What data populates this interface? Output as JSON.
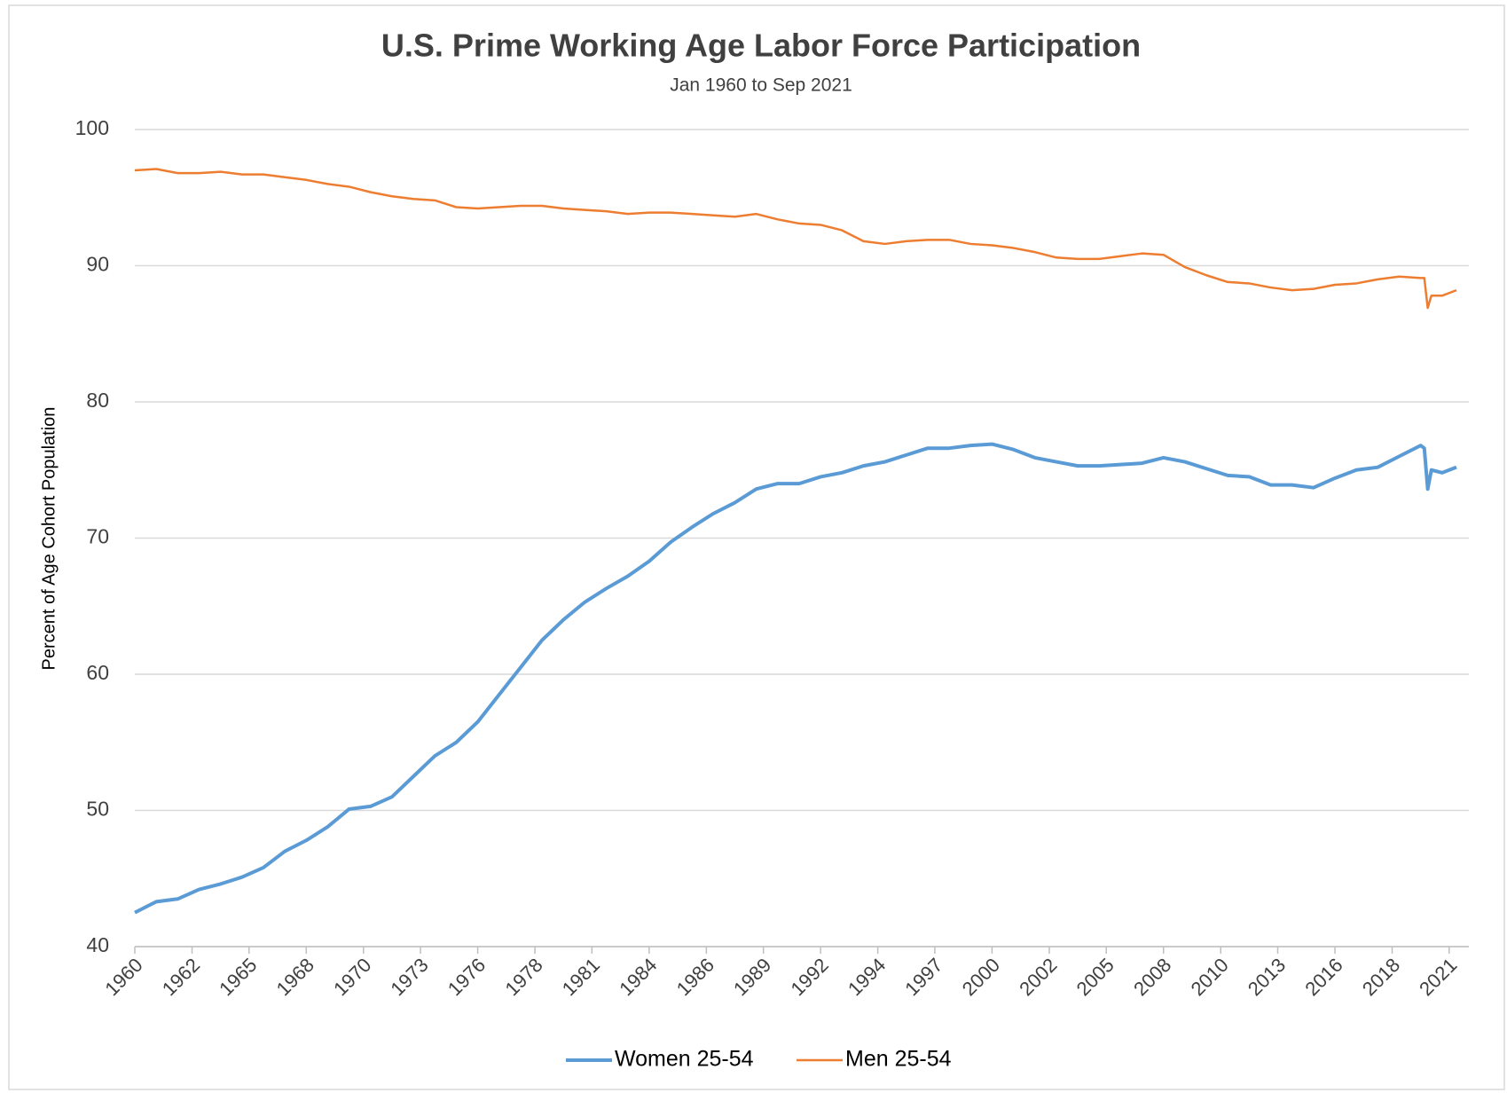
{
  "chart_data": {
    "type": "line",
    "title": "U.S. Prime Working Age Labor Force Participation",
    "subtitle": "Jan 1960 to Sep 2021",
    "y_label": "Percent of Age Cohort Population",
    "x": [
      1960,
      1961,
      1962,
      1963,
      1964,
      1965,
      1966,
      1967,
      1968,
      1969,
      1970,
      1971,
      1972,
      1973,
      1974,
      1975,
      1976,
      1977,
      1978,
      1979,
      1980,
      1981,
      1982,
      1983,
      1984,
      1985,
      1986,
      1987,
      1988,
      1989,
      1990,
      1991,
      1992,
      1993,
      1994,
      1995,
      1996,
      1997,
      1998,
      1999,
      2000,
      2001,
      2002,
      2003,
      2004,
      2005,
      2006,
      2007,
      2008,
      2009,
      2010,
      2011,
      2012,
      2013,
      2014,
      2015,
      2016,
      2017,
      2018,
      2019,
      2020,
      2020.17,
      2020.33,
      2020.5,
      2021,
      2021.67
    ],
    "series": [
      {
        "name": "Women 25-54",
        "color": "#5b9bd5",
        "values": [
          42.5,
          43.3,
          43.5,
          44.2,
          44.6,
          45.1,
          45.8,
          47.0,
          47.8,
          48.8,
          50.1,
          50.3,
          51.0,
          52.5,
          54.0,
          55.0,
          56.5,
          58.5,
          60.5,
          62.5,
          64.0,
          65.3,
          66.3,
          67.2,
          68.3,
          69.7,
          70.8,
          71.8,
          72.6,
          73.6,
          74.0,
          74.0,
          74.5,
          74.8,
          75.3,
          75.6,
          76.1,
          76.6,
          76.6,
          76.8,
          76.9,
          76.5,
          75.9,
          75.6,
          75.3,
          75.3,
          75.4,
          75.5,
          75.9,
          75.6,
          75.1,
          74.6,
          74.5,
          73.9,
          73.9,
          73.7,
          74.4,
          75.0,
          75.2,
          76.0,
          76.8,
          76.6,
          73.6,
          75.0,
          74.8,
          75.2
        ]
      },
      {
        "name": "Men 25-54",
        "color": "#ed7d31",
        "values": [
          97.0,
          97.1,
          96.8,
          96.8,
          96.9,
          96.7,
          96.7,
          96.5,
          96.3,
          96.0,
          95.8,
          95.4,
          95.1,
          94.9,
          94.8,
          94.3,
          94.2,
          94.3,
          94.4,
          94.4,
          94.2,
          94.1,
          94.0,
          93.8,
          93.9,
          93.9,
          93.8,
          93.7,
          93.6,
          93.8,
          93.4,
          93.1,
          93.0,
          92.6,
          91.8,
          91.6,
          91.8,
          91.9,
          91.9,
          91.6,
          91.5,
          91.3,
          91.0,
          90.6,
          90.5,
          90.5,
          90.7,
          90.9,
          90.8,
          89.9,
          89.3,
          88.8,
          88.7,
          88.4,
          88.2,
          88.3,
          88.6,
          88.7,
          89.0,
          89.2,
          89.1,
          89.1,
          86.9,
          87.8,
          87.8,
          88.2
        ]
      }
    ],
    "xlim": [
      1960,
      2021.67
    ],
    "xticks": [
      {
        "value": 1960,
        "label": "1960"
      },
      {
        "value": 1962.67,
        "label": "1962"
      },
      {
        "value": 1965.33,
        "label": "1965"
      },
      {
        "value": 1968,
        "label": "1968"
      },
      {
        "value": 1970.67,
        "label": "1970"
      },
      {
        "value": 1973.33,
        "label": "1973"
      },
      {
        "value": 1976,
        "label": "1976"
      },
      {
        "value": 1978.67,
        "label": "1978"
      },
      {
        "value": 1981.33,
        "label": "1981"
      },
      {
        "value": 1984,
        "label": "1984"
      },
      {
        "value": 1986.67,
        "label": "1986"
      },
      {
        "value": 1989.33,
        "label": "1989"
      },
      {
        "value": 1992,
        "label": "1992"
      },
      {
        "value": 1994.67,
        "label": "1994"
      },
      {
        "value": 1997.33,
        "label": "1997"
      },
      {
        "value": 2000,
        "label": "2000"
      },
      {
        "value": 2002.67,
        "label": "2002"
      },
      {
        "value": 2005.33,
        "label": "2005"
      },
      {
        "value": 2008,
        "label": "2008"
      },
      {
        "value": 2010.67,
        "label": "2010"
      },
      {
        "value": 2013.33,
        "label": "2013"
      },
      {
        "value": 2016,
        "label": "2016"
      },
      {
        "value": 2018.67,
        "label": "2018"
      },
      {
        "value": 2021.33,
        "label": "2021"
      }
    ],
    "ylim": [
      40,
      100
    ],
    "yticks": [
      40,
      50,
      60,
      70,
      80,
      90,
      100
    ],
    "grid": true,
    "legend": "bottom"
  }
}
